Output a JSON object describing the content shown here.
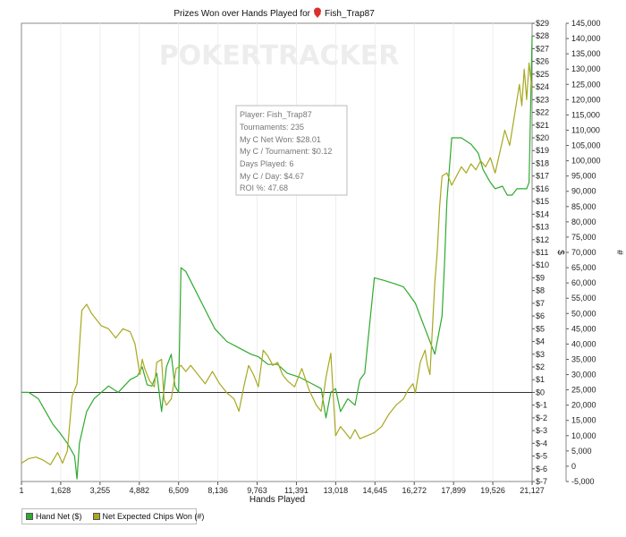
{
  "chart_data": {
    "type": "line",
    "title_prefix": "Prizes Won over Hands Played for",
    "title_player": "Fish_Trap87",
    "watermark": "POKERTRACKER",
    "xlabel": "Hands Played",
    "y_left_label": "$",
    "y_right_label": "#",
    "x_ticks": [
      "1",
      "1,628",
      "3,255",
      "4,882",
      "6,509",
      "8,136",
      "9,763",
      "11,391",
      "13,018",
      "14,645",
      "16,272",
      "17,899",
      "19,526",
      "21,127"
    ],
    "x_range": [
      1,
      21127
    ],
    "y_left_ticks": [
      "$29",
      "$28",
      "$27",
      "$26",
      "$25",
      "$24",
      "$23",
      "$22",
      "$21",
      "$20",
      "$19",
      "$18",
      "$17",
      "$16",
      "$15",
      "$14",
      "$13",
      "$12",
      "$11",
      "$10",
      "$9",
      "$8",
      "$7",
      "$6",
      "$5",
      "$4",
      "$3",
      "$2",
      "$1",
      "$0",
      "$-1",
      "$-2",
      "$-3",
      "$-4",
      "$-5",
      "$-6",
      "$-7"
    ],
    "y_left_range": [
      -7,
      29
    ],
    "y_right_ticks": [
      "145,000",
      "140,000",
      "135,000",
      "130,000",
      "125,000",
      "120,000",
      "115,000",
      "110,000",
      "105,000",
      "100,000",
      "95,000",
      "90,000",
      "85,000",
      "80,000",
      "75,000",
      "70,000",
      "65,000",
      "60,000",
      "55,000",
      "50,000",
      "45,000",
      "40,000",
      "35,000",
      "30,000",
      "25,000",
      "20,000",
      "15,000",
      "10,000",
      "5,000",
      "0",
      "-5,000"
    ],
    "y_right_range": [
      -5000,
      145000
    ],
    "info_box": {
      "player": "Player: Fish_Trap87",
      "tournaments": "Tournaments: 235",
      "net_won": "My C Net Won: $28.01",
      "per_tournament": "My C / Tournament: $0.12",
      "days_played": "Days Played: 6",
      "per_day": "My C / Day: $4.67",
      "roi": "ROI %: 47.68"
    },
    "legend": [
      {
        "label": "Hand Net ($)",
        "color": "#2eaa2e"
      },
      {
        "label": "Net Expected Chips Won (#)",
        "color": "#a8a820"
      }
    ],
    "series": [
      {
        "name": "Hand Net ($)",
        "axis": "left",
        "color": "#2eaa2e",
        "x": [
          1,
          300,
          700,
          1000,
          1300,
          1600,
          1900,
          2200,
          2300,
          2400,
          2700,
          3000,
          3300,
          3600,
          4000,
          4500,
          4800,
          5000,
          5200,
          5400,
          5600,
          5800,
          6000,
          6100,
          6200,
          6350,
          6500,
          6600,
          6800,
          7200,
          7600,
          8000,
          8500,
          9000,
          9500,
          9800,
          10000,
          10200,
          10600,
          11000,
          11500,
          12000,
          12400,
          12600,
          12800,
          13000,
          13200,
          13500,
          13800,
          14000,
          14200,
          14600,
          15000,
          15500,
          15800,
          16000,
          16300,
          16500,
          16700,
          16900,
          17000,
          17100,
          17200,
          17400,
          17500,
          17600,
          17800,
          18200,
          18600,
          18900,
          19100,
          19400,
          19600,
          19900,
          20100,
          20300,
          20500,
          20700,
          20900,
          21000,
          21127
        ],
        "values": [
          0,
          0,
          -0.5,
          -1.5,
          -2.5,
          -3.2,
          -4,
          -5,
          -6.8,
          -4,
          -1.5,
          -0.5,
          0,
          0.5,
          0,
          1,
          1.3,
          2,
          0.6,
          0.5,
          1.5,
          -1.5,
          2,
          2.5,
          3,
          0.5,
          0,
          9.8,
          9.5,
          8,
          6.5,
          5,
          4,
          3.5,
          3,
          2.8,
          2.5,
          2.2,
          2.2,
          1.5,
          1.2,
          0.7,
          0.3,
          -2,
          0,
          0.3,
          -1.5,
          -0.5,
          -1,
          1,
          1.5,
          9,
          8.8,
          8.5,
          8.3,
          7.8,
          7,
          6,
          5,
          4,
          3.5,
          3,
          4,
          6,
          10,
          15,
          20,
          20,
          19.5,
          18.8,
          17.5,
          16.5,
          16,
          16.2,
          15.5,
          15.5,
          16,
          16,
          16,
          16.5,
          28.01
        ]
      },
      {
        "name": "Net Expected Chips Won (#)",
        "axis": "right",
        "color": "#a8a820",
        "x": [
          1,
          300,
          600,
          900,
          1200,
          1500,
          1700,
          1900,
          2100,
          2300,
          2500,
          2700,
          2900,
          3100,
          3300,
          3600,
          3900,
          4200,
          4500,
          4700,
          4900,
          5000,
          5100,
          5300,
          5500,
          5600,
          5800,
          5900,
          6000,
          6200,
          6400,
          6600,
          6800,
          7000,
          7300,
          7600,
          7900,
          8200,
          8500,
          8800,
          9000,
          9200,
          9400,
          9600,
          9800,
          10000,
          10200,
          10400,
          10600,
          10800,
          11000,
          11300,
          11600,
          11900,
          12200,
          12400,
          12600,
          12800,
          13000,
          13200,
          13400,
          13600,
          13800,
          14000,
          14300,
          14600,
          14900,
          15200,
          15500,
          15800,
          16000,
          16200,
          16300,
          16500,
          16700,
          16800,
          16900,
          17000,
          17100,
          17200,
          17300,
          17400,
          17600,
          17800,
          18000,
          18200,
          18400,
          18600,
          18800,
          19000,
          19200,
          19400,
          19600,
          19800,
          20000,
          20200,
          20400,
          20600,
          20700,
          20800,
          20900,
          21000,
          21127
        ],
        "values": [
          1000,
          2500,
          3000,
          2000,
          500,
          4500,
          1000,
          5000,
          23000,
          27000,
          51000,
          53000,
          50000,
          48000,
          46000,
          45000,
          42000,
          45000,
          44000,
          40000,
          30000,
          35000,
          32000,
          28000,
          26000,
          34000,
          35000,
          22000,
          20000,
          22000,
          32000,
          33000,
          31000,
          33000,
          30000,
          27000,
          31000,
          27000,
          24000,
          22000,
          18000,
          26000,
          33000,
          30000,
          26000,
          38000,
          36000,
          33000,
          34000,
          30000,
          28000,
          26000,
          32000,
          25000,
          20000,
          18000,
          29000,
          37000,
          10000,
          13000,
          11000,
          9000,
          12000,
          9000,
          10000,
          11000,
          13000,
          17000,
          20000,
          22000,
          25000,
          27000,
          24000,
          34000,
          38000,
          33000,
          30000,
          45000,
          60000,
          70000,
          85000,
          95000,
          96000,
          92000,
          95000,
          98000,
          96000,
          99000,
          97000,
          100000,
          98000,
          101000,
          96000,
          103000,
          110000,
          105000,
          115000,
          125000,
          118000,
          130000,
          120000,
          132000,
          123000
        ]
      }
    ]
  }
}
